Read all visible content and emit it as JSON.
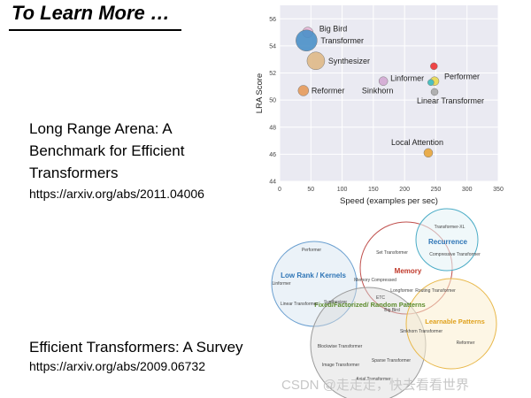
{
  "slide": {
    "title": "To Learn More …",
    "lra_paper": {
      "title_lines": [
        "Long Range Arena: A",
        "Benchmark for Efficient",
        "Transformers"
      ],
      "url": "https://arxiv.org/abs/2011.04006"
    },
    "survey_paper": {
      "title": "Efficient Transformers: A Survey",
      "url": "https://arxiv.org/abs/2009.06732"
    },
    "watermark": "CSDN @走走走，快去看看世界"
  },
  "chart_data": {
    "type": "scatter",
    "xlabel": "Speed (examples per sec)",
    "ylabel": "LRA Score",
    "xlim": [
      0,
      350
    ],
    "ylim": [
      44,
      57
    ],
    "xticks": [
      0,
      50,
      100,
      150,
      200,
      250,
      300,
      350
    ],
    "yticks": [
      44,
      46,
      48,
      50,
      52,
      54,
      56
    ],
    "grid": true,
    "points": [
      {
        "label": "Big Bird",
        "x": 45,
        "y": 55.0,
        "color": "#e8b6d6",
        "r": 6
      },
      {
        "label": "Transformer",
        "x": 43,
        "y": 54.4,
        "color": "#4a90c8",
        "r": 12
      },
      {
        "label": "Synthesizer",
        "x": 58,
        "y": 52.9,
        "color": "#dfb987",
        "r": 10
      },
      {
        "label": "Reformer",
        "x": 38,
        "y": 50.7,
        "color": "#e59a5a",
        "r": 6
      },
      {
        "label": "Linformer",
        "x": 166,
        "y": 51.4,
        "color": "#d3a8d3",
        "r": 5
      },
      {
        "label": "Sinkhorn",
        "x": 160,
        "y": 51.4,
        "color": "#d3a8d3",
        "r": 0
      },
      {
        "label": "Performer",
        "x": 248,
        "y": 51.4,
        "color": "#e8d84f",
        "r": 5
      },
      {
        "label": "Performer-highlight",
        "x": 247,
        "y": 52.5,
        "color": "#ee3333",
        "r": 4
      },
      {
        "label": "Linear Transformer",
        "x": 248,
        "y": 50.6,
        "color": "#aaaaaa",
        "r": 4
      },
      {
        "label": "Local Attention",
        "x": 238,
        "y": 46.1,
        "color": "#e8a53a",
        "r": 5
      }
    ],
    "venn": [
      {
        "name": "Low Rank / Kernels",
        "items": [
          "Performer",
          "Linformer",
          "Linear Transformer",
          "Synthesizer"
        ]
      },
      {
        "name": "Memory",
        "items": [
          "Set Transformer",
          "Memory Compressed",
          "ETC",
          "Longformer",
          "Big Bird",
          "Routing Transformer",
          "Compressive Transformer"
        ]
      },
      {
        "name": "Recurrence",
        "items": [
          "Transformer-XL",
          "Compressive Transformer"
        ]
      },
      {
        "name": "Fixed/Factorized/ Random Patterns",
        "items": [
          "Blockwise Transformer",
          "Image Transformer",
          "Sparse Transformer",
          "Axial Transformer",
          "Sinkhorn Transformer"
        ]
      },
      {
        "name": "Learnable Patterns",
        "items": [
          "Reformer",
          "Routing Transformer",
          "Sinkhorn Transformer"
        ]
      }
    ]
  }
}
